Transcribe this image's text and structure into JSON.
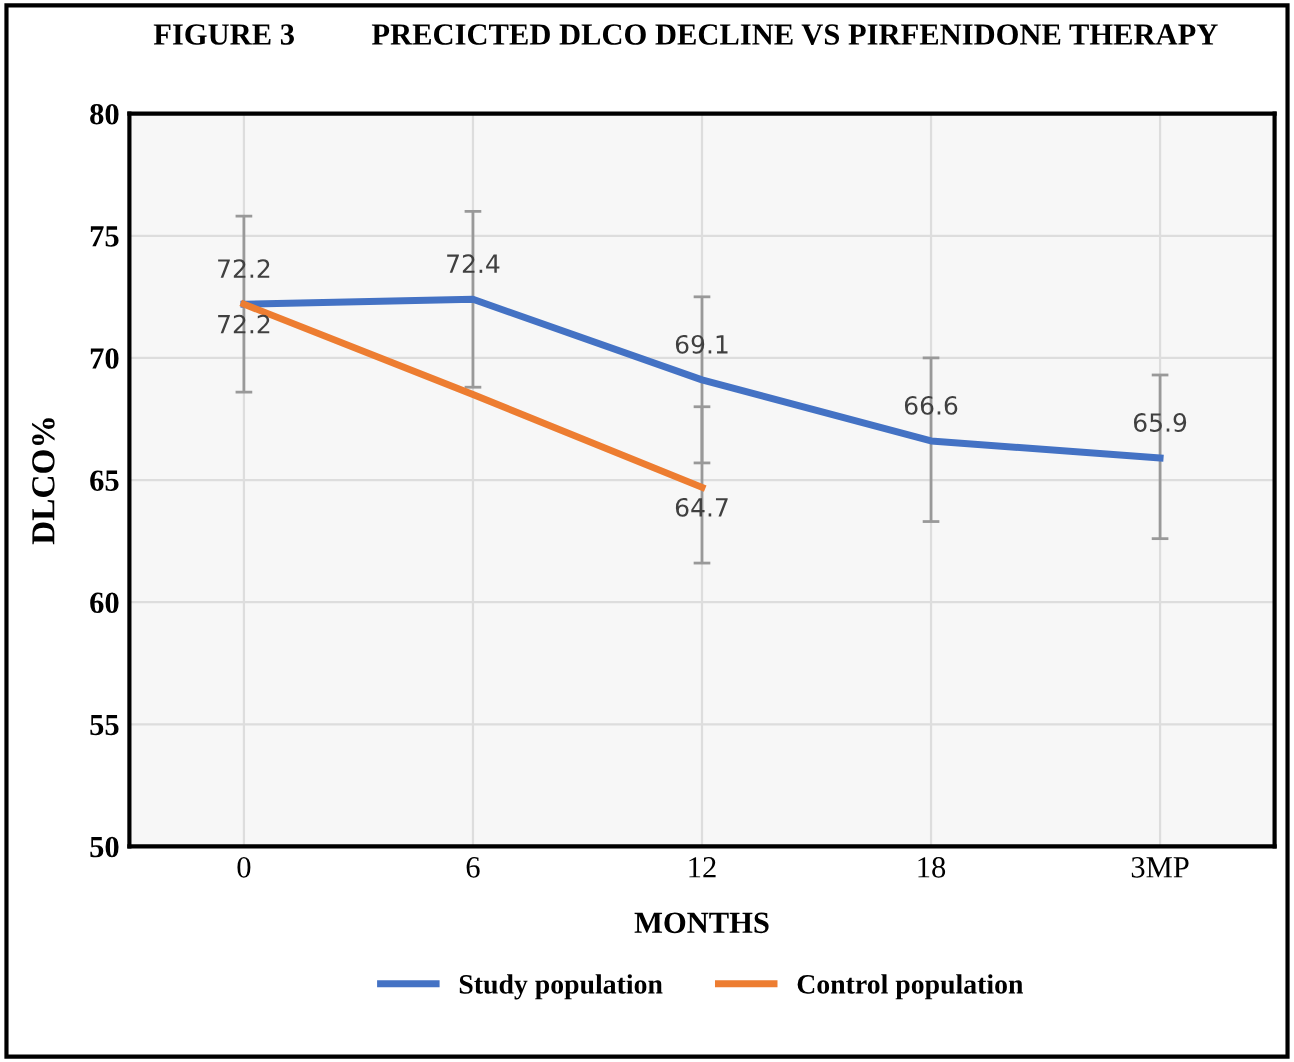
{
  "chart_data": {
    "type": "line",
    "title": "FIGURE 3          PRECICTED DLCO DECLINE VS PIRFENIDONE THERAPY",
    "xlabel": "MONTHS",
    "ylabel": "DLCO%",
    "categories": [
      "0",
      "6",
      "12",
      "18",
      "3MP"
    ],
    "series": [
      {
        "name": "Study population",
        "color": "#4472c4",
        "values": [
          72.2,
          72.4,
          69.1,
          66.6,
          65.9
        ],
        "value_labels": [
          "72.2",
          "72.4",
          "69.1",
          "66.6",
          "65.9"
        ],
        "errors": [
          [
            68.6,
            75.8
          ],
          [
            68.8,
            76.0
          ],
          [
            65.7,
            72.5
          ],
          [
            63.3,
            70.0
          ],
          [
            62.6,
            69.3
          ]
        ]
      },
      {
        "name": "Control population",
        "color": "#ed7d31",
        "values": [
          72.2,
          68.5,
          64.7,
          null,
          null
        ],
        "value_labels": [
          "72.2",
          null,
          "64.7",
          null,
          null
        ],
        "errors": [
          null,
          null,
          [
            61.6,
            68.0
          ],
          null,
          null
        ]
      }
    ],
    "ylim": [
      50,
      80
    ],
    "yticks": [
      50,
      55,
      60,
      65,
      70,
      75,
      80
    ],
    "grid": true,
    "legend": "bottom",
    "marker": "none",
    "line_style": "solid"
  }
}
